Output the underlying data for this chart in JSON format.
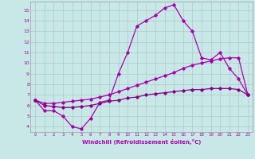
{
  "xlabel": "Windchill (Refroidissement éolien,°C)",
  "bg_color": "#c8e8e8",
  "grid_color": "#b0c8c8",
  "line_color1": "#aa00aa",
  "line_color2": "#880088",
  "x_ticks": [
    0,
    1,
    2,
    3,
    4,
    5,
    6,
    7,
    8,
    9,
    10,
    11,
    12,
    13,
    14,
    15,
    16,
    17,
    18,
    19,
    20,
    21,
    22,
    23
  ],
  "ylim": [
    3.5,
    15.8
  ],
  "xlim": [
    -0.5,
    23.5
  ],
  "y_ticks": [
    4,
    5,
    6,
    7,
    8,
    9,
    10,
    11,
    12,
    13,
    14,
    15
  ],
  "line1": [
    6.5,
    5.5,
    5.5,
    5.0,
    4.0,
    3.8,
    4.8,
    6.3,
    6.5,
    9.0,
    11.0,
    13.5,
    14.0,
    14.5,
    15.2,
    15.5,
    14.0,
    13.0,
    10.5,
    10.3,
    11.0,
    9.5,
    8.5,
    7.0
  ],
  "line2": [
    6.5,
    6.2,
    6.2,
    6.3,
    6.4,
    6.5,
    6.6,
    6.8,
    7.0,
    7.3,
    7.6,
    7.9,
    8.2,
    8.5,
    8.8,
    9.1,
    9.5,
    9.8,
    10.0,
    10.2,
    10.4,
    10.5,
    10.5,
    7.0
  ],
  "line3": [
    6.5,
    6.0,
    5.9,
    5.8,
    5.8,
    5.9,
    6.0,
    6.2,
    6.4,
    6.5,
    6.7,
    6.8,
    7.0,
    7.1,
    7.2,
    7.3,
    7.4,
    7.5,
    7.5,
    7.6,
    7.6,
    7.6,
    7.5,
    7.0
  ]
}
